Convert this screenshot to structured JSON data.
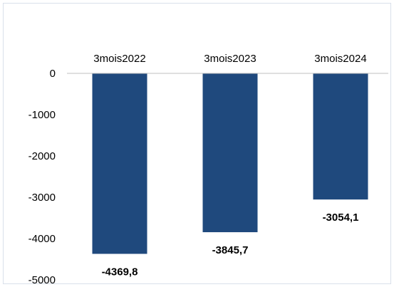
{
  "chart_data": {
    "type": "bar",
    "categories": [
      "3mois2022",
      "3mois2023",
      "3mois2024"
    ],
    "values": [
      -4369.8,
      -3845.7,
      -3054.1
    ],
    "data_labels": [
      "-4369,8",
      "-3845,7",
      "-3054,1"
    ],
    "y_ticks": [
      0,
      -1000,
      -2000,
      -3000,
      -4000,
      -5000
    ],
    "y_tick_labels": [
      "0",
      "-1000",
      "-2000",
      "-3000",
      "-4000",
      "-5000"
    ],
    "ylim": [
      -5000,
      0
    ],
    "title": "",
    "xlabel": "",
    "ylabel": "",
    "grid": false,
    "legend": "none",
    "category_axis_position": "top",
    "bar_color": "#1f497d"
  }
}
